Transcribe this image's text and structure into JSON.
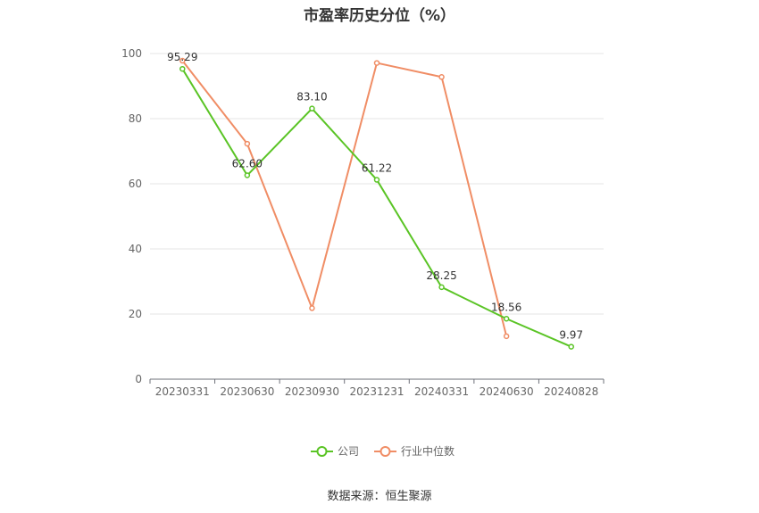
{
  "chart_data": {
    "type": "line",
    "title": "市盈率历史分位（%）",
    "categories": [
      "20230331",
      "20230630",
      "20230930",
      "20231231",
      "20240331",
      "20240630",
      "20240828"
    ],
    "ylim": [
      0,
      100
    ],
    "yticks": [
      0,
      20,
      40,
      60,
      80,
      100
    ],
    "grid": true,
    "legend_position": "bottom",
    "series": [
      {
        "name": "公司",
        "color": "#5ac425",
        "values": [
          95.29,
          62.6,
          83.1,
          61.22,
          28.25,
          18.56,
          9.97
        ],
        "labels": [
          "95.29",
          "62.60",
          "83.10",
          "61.22",
          "28.25",
          "18.56",
          "9.97"
        ]
      },
      {
        "name": "行业中位数",
        "color": "#f08d65",
        "values": [
          97.8,
          72.3,
          21.8,
          97.1,
          92.8,
          13.2,
          null
        ]
      }
    ]
  },
  "source": "数据来源：恒生聚源"
}
